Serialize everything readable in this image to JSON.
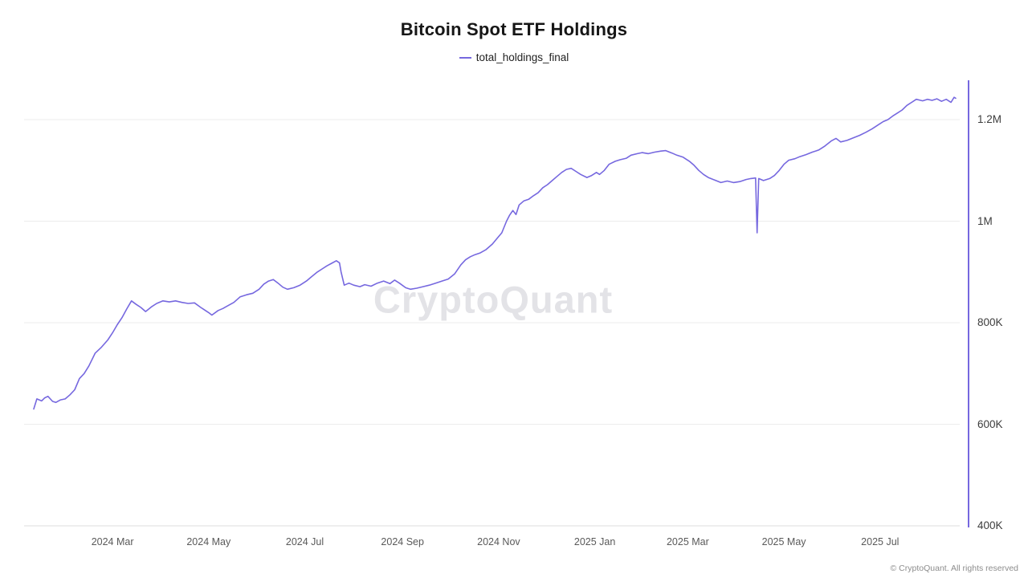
{
  "title": "Bitcoin Spot ETF Holdings",
  "legend": {
    "label": "total_holdings_final",
    "color": "#7668df"
  },
  "watermark": "CryptoQuant",
  "footer": "© CryptoQuant. All rights reserved",
  "colors": {
    "series": "#7668df",
    "grid": "#ececec",
    "baseline": "#dedede",
    "axis_right": "#7668df"
  },
  "chart_data": {
    "type": "line",
    "title": "Bitcoin Spot ETF Holdings",
    "legend_position": "top",
    "grid": "horizontal",
    "y_unit": "BTC (thousands)",
    "ylim": [
      400,
      1280
    ],
    "y_ticks": [
      {
        "value": 1200,
        "label": "1.2M"
      },
      {
        "value": 1000,
        "label": "1M"
      },
      {
        "value": 800,
        "label": "800K"
      },
      {
        "value": 600,
        "label": "600K"
      },
      {
        "value": 400,
        "label": "400K"
      }
    ],
    "x_ticks": [
      {
        "date": "2024-03-01",
        "label": "2024 Mar"
      },
      {
        "date": "2024-05-01",
        "label": "2024 May"
      },
      {
        "date": "2024-07-01",
        "label": "2024 Jul"
      },
      {
        "date": "2024-09-01",
        "label": "2024 Sep"
      },
      {
        "date": "2024-11-01",
        "label": "2024 Nov"
      },
      {
        "date": "2025-01-01",
        "label": "2025 Jan"
      },
      {
        "date": "2025-03-01",
        "label": "2025 Mar"
      },
      {
        "date": "2025-05-01",
        "label": "2025 May"
      },
      {
        "date": "2025-07-01",
        "label": "2025 Jul"
      }
    ],
    "series": [
      {
        "name": "total_holdings_final",
        "color": "#7668df",
        "points": [
          [
            "2024-01-11",
            630
          ],
          [
            "2024-01-13",
            650
          ],
          [
            "2024-01-16",
            646
          ],
          [
            "2024-01-18",
            652
          ],
          [
            "2024-01-20",
            655
          ],
          [
            "2024-01-23",
            645
          ],
          [
            "2024-01-25",
            643
          ],
          [
            "2024-01-28",
            648
          ],
          [
            "2024-01-31",
            650
          ],
          [
            "2024-02-03",
            658
          ],
          [
            "2024-02-06",
            668
          ],
          [
            "2024-02-09",
            690
          ],
          [
            "2024-02-12",
            700
          ],
          [
            "2024-02-15",
            715
          ],
          [
            "2024-02-19",
            740
          ],
          [
            "2024-02-23",
            752
          ],
          [
            "2024-02-27",
            766
          ],
          [
            "2024-03-01",
            780
          ],
          [
            "2024-03-04",
            796
          ],
          [
            "2024-03-07",
            810
          ],
          [
            "2024-03-10",
            827
          ],
          [
            "2024-03-13",
            843
          ],
          [
            "2024-03-16",
            836
          ],
          [
            "2024-03-19",
            830
          ],
          [
            "2024-03-22",
            822
          ],
          [
            "2024-03-26",
            832
          ],
          [
            "2024-03-29",
            838
          ],
          [
            "2024-04-02",
            843
          ],
          [
            "2024-04-06",
            841
          ],
          [
            "2024-04-10",
            843
          ],
          [
            "2024-04-14",
            840
          ],
          [
            "2024-04-18",
            838
          ],
          [
            "2024-04-22",
            839
          ],
          [
            "2024-04-26",
            830
          ],
          [
            "2024-05-01",
            820
          ],
          [
            "2024-05-03",
            815
          ],
          [
            "2024-05-07",
            824
          ],
          [
            "2024-05-10",
            828
          ],
          [
            "2024-05-14",
            835
          ],
          [
            "2024-05-17",
            840
          ],
          [
            "2024-05-21",
            851
          ],
          [
            "2024-05-25",
            855
          ],
          [
            "2024-05-29",
            858
          ],
          [
            "2024-06-02",
            866
          ],
          [
            "2024-06-05",
            876
          ],
          [
            "2024-06-08",
            882
          ],
          [
            "2024-06-11",
            885
          ],
          [
            "2024-06-14",
            878
          ],
          [
            "2024-06-17",
            870
          ],
          [
            "2024-06-20",
            866
          ],
          [
            "2024-06-24",
            869
          ],
          [
            "2024-06-28",
            874
          ],
          [
            "2024-07-02",
            882
          ],
          [
            "2024-07-05",
            890
          ],
          [
            "2024-07-09",
            900
          ],
          [
            "2024-07-12",
            906
          ],
          [
            "2024-07-15",
            912
          ],
          [
            "2024-07-18",
            917
          ],
          [
            "2024-07-21",
            922
          ],
          [
            "2024-07-23",
            918
          ],
          [
            "2024-07-24",
            900
          ],
          [
            "2024-07-26",
            874
          ],
          [
            "2024-07-29",
            878
          ],
          [
            "2024-08-01",
            874
          ],
          [
            "2024-08-05",
            871
          ],
          [
            "2024-08-08",
            875
          ],
          [
            "2024-08-12",
            872
          ],
          [
            "2024-08-16",
            878
          ],
          [
            "2024-08-20",
            882
          ],
          [
            "2024-08-24",
            877
          ],
          [
            "2024-08-27",
            884
          ],
          [
            "2024-08-30",
            878
          ],
          [
            "2024-09-03",
            869
          ],
          [
            "2024-09-06",
            866
          ],
          [
            "2024-09-10",
            868
          ],
          [
            "2024-09-14",
            871
          ],
          [
            "2024-09-18",
            874
          ],
          [
            "2024-09-22",
            878
          ],
          [
            "2024-09-26",
            882
          ],
          [
            "2024-09-30",
            886
          ],
          [
            "2024-10-04",
            896
          ],
          [
            "2024-10-08",
            914
          ],
          [
            "2024-10-11",
            924
          ],
          [
            "2024-10-14",
            930
          ],
          [
            "2024-10-17",
            934
          ],
          [
            "2024-10-20",
            937
          ],
          [
            "2024-10-24",
            944
          ],
          [
            "2024-10-28",
            955
          ],
          [
            "2024-10-31",
            966
          ],
          [
            "2024-11-03",
            977
          ],
          [
            "2024-11-06",
            1000
          ],
          [
            "2024-11-08",
            1012
          ],
          [
            "2024-11-10",
            1021
          ],
          [
            "2024-11-12",
            1013
          ],
          [
            "2024-11-14",
            1032
          ],
          [
            "2024-11-17",
            1040
          ],
          [
            "2024-11-20",
            1043
          ],
          [
            "2024-11-23",
            1050
          ],
          [
            "2024-11-26",
            1056
          ],
          [
            "2024-11-29",
            1066
          ],
          [
            "2024-12-02",
            1072
          ],
          [
            "2024-12-05",
            1080
          ],
          [
            "2024-12-08",
            1088
          ],
          [
            "2024-12-11",
            1096
          ],
          [
            "2024-12-14",
            1102
          ],
          [
            "2024-12-17",
            1104
          ],
          [
            "2024-12-20",
            1098
          ],
          [
            "2024-12-23",
            1092
          ],
          [
            "2024-12-27",
            1086
          ],
          [
            "2024-12-30",
            1090
          ],
          [
            "2025-01-02",
            1096
          ],
          [
            "2025-01-04",
            1092
          ],
          [
            "2025-01-07",
            1100
          ],
          [
            "2025-01-10",
            1112
          ],
          [
            "2025-01-14",
            1118
          ],
          [
            "2025-01-17",
            1121
          ],
          [
            "2025-01-21",
            1124
          ],
          [
            "2025-01-24",
            1130
          ],
          [
            "2025-01-28",
            1133
          ],
          [
            "2025-01-31",
            1135
          ],
          [
            "2025-02-04",
            1133
          ],
          [
            "2025-02-08",
            1136
          ],
          [
            "2025-02-12",
            1138
          ],
          [
            "2025-02-15",
            1139
          ],
          [
            "2025-02-19",
            1134
          ],
          [
            "2025-02-22",
            1130
          ],
          [
            "2025-02-26",
            1126
          ],
          [
            "2025-03-02",
            1118
          ],
          [
            "2025-03-05",
            1110
          ],
          [
            "2025-03-08",
            1100
          ],
          [
            "2025-03-11",
            1092
          ],
          [
            "2025-03-14",
            1086
          ],
          [
            "2025-03-18",
            1081
          ],
          [
            "2025-03-22",
            1076
          ],
          [
            "2025-03-26",
            1079
          ],
          [
            "2025-03-30",
            1076
          ],
          [
            "2025-04-03",
            1078
          ],
          [
            "2025-04-07",
            1082
          ],
          [
            "2025-04-10",
            1084
          ],
          [
            "2025-04-13",
            1085
          ],
          [
            "2025-04-14",
            977
          ],
          [
            "2025-04-15",
            1084
          ],
          [
            "2025-04-18",
            1080
          ],
          [
            "2025-04-22",
            1084
          ],
          [
            "2025-04-25",
            1090
          ],
          [
            "2025-04-28",
            1100
          ],
          [
            "2025-05-01",
            1112
          ],
          [
            "2025-05-04",
            1120
          ],
          [
            "2025-05-08",
            1123
          ],
          [
            "2025-05-11",
            1127
          ],
          [
            "2025-05-15",
            1131
          ],
          [
            "2025-05-19",
            1136
          ],
          [
            "2025-05-23",
            1140
          ],
          [
            "2025-05-27",
            1148
          ],
          [
            "2025-05-31",
            1158
          ],
          [
            "2025-06-03",
            1163
          ],
          [
            "2025-06-06",
            1156
          ],
          [
            "2025-06-10",
            1159
          ],
          [
            "2025-06-14",
            1164
          ],
          [
            "2025-06-18",
            1169
          ],
          [
            "2025-06-22",
            1175
          ],
          [
            "2025-06-26",
            1182
          ],
          [
            "2025-06-30",
            1190
          ],
          [
            "2025-07-03",
            1196
          ],
          [
            "2025-07-06",
            1200
          ],
          [
            "2025-07-09",
            1207
          ],
          [
            "2025-07-12",
            1213
          ],
          [
            "2025-07-15",
            1219
          ],
          [
            "2025-07-18",
            1228
          ],
          [
            "2025-07-21",
            1234
          ],
          [
            "2025-07-24",
            1240
          ],
          [
            "2025-07-28",
            1237
          ],
          [
            "2025-07-31",
            1240
          ],
          [
            "2025-08-03",
            1238
          ],
          [
            "2025-08-06",
            1241
          ],
          [
            "2025-08-09",
            1236
          ],
          [
            "2025-08-12",
            1240
          ],
          [
            "2025-08-15",
            1234
          ],
          [
            "2025-08-17",
            1244
          ],
          [
            "2025-08-18",
            1242
          ]
        ]
      }
    ]
  }
}
